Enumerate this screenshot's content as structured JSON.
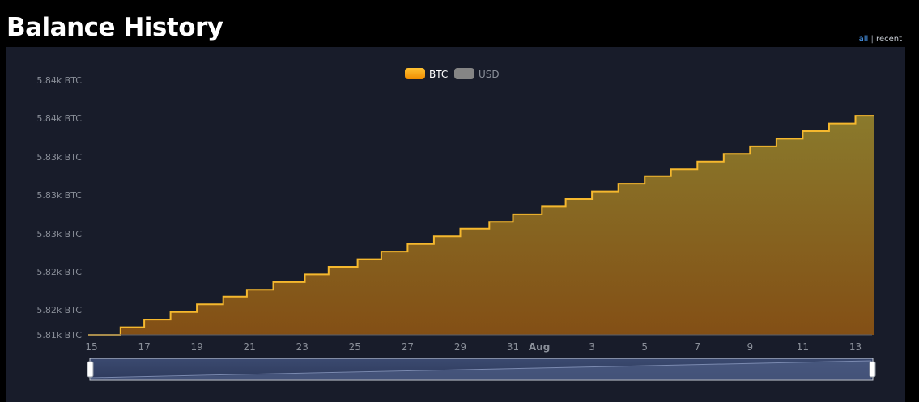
{
  "page": {
    "title": "Balance History",
    "range_links": {
      "all": "all",
      "separator": "|",
      "recent": "recent"
    }
  },
  "chart_data": {
    "type": "area",
    "step": true,
    "legend": [
      {
        "name": "BTC",
        "color": "#f5a623",
        "active": true
      },
      {
        "name": "USD",
        "color": "#888888",
        "active": false
      }
    ],
    "legend_placement": "top-center",
    "y_tick_labels": [
      "5.84k BTC",
      "5.84k BTC",
      "5.83k BTC",
      "5.83k BTC",
      "5.83k BTC",
      "5.82k BTC",
      "5.82k BTC",
      "5.81k BTC"
    ],
    "ylim": [
      5813,
      5843
    ],
    "x_tick_labels": [
      {
        "label": "15",
        "day": 0,
        "bold": false
      },
      {
        "label": "17",
        "day": 2,
        "bold": false
      },
      {
        "label": "19",
        "day": 4,
        "bold": false
      },
      {
        "label": "21",
        "day": 6,
        "bold": false
      },
      {
        "label": "23",
        "day": 8,
        "bold": false
      },
      {
        "label": "25",
        "day": 10,
        "bold": false
      },
      {
        "label": "27",
        "day": 12,
        "bold": false
      },
      {
        "label": "29",
        "day": 14,
        "bold": false
      },
      {
        "label": "31",
        "day": 16,
        "bold": false
      },
      {
        "label": "Aug",
        "day": 17,
        "bold": true
      },
      {
        "label": "3",
        "day": 19,
        "bold": false
      },
      {
        "label": "5",
        "day": 21,
        "bold": false
      },
      {
        "label": "7",
        "day": 23,
        "bold": false
      },
      {
        "label": "9",
        "day": 25,
        "bold": false
      },
      {
        "label": "11",
        "day": 27,
        "bold": false
      },
      {
        "label": "13",
        "day": 29,
        "bold": false
      }
    ],
    "series": [
      {
        "name": "BTC",
        "x": [
          "Jul 15",
          "Jul 16",
          "Jul 17",
          "Jul 18",
          "Jul 19",
          "Jul 20",
          "Jul 21",
          "Jul 22",
          "Jul 23",
          "Jul 24",
          "Jul 25",
          "Jul 26",
          "Jul 27",
          "Jul 28",
          "Jul 29",
          "Jul 30",
          "Jul 31",
          "Aug 1",
          "Aug 2",
          "Aug 3",
          "Aug 4",
          "Aug 5",
          "Aug 6",
          "Aug 7",
          "Aug 8",
          "Aug 9",
          "Aug 10",
          "Aug 11",
          "Aug 12",
          "Aug 13"
        ],
        "x_day": [
          0,
          1.1,
          2,
          3,
          4,
          5,
          5.9,
          6.9,
          8.1,
          9,
          10.1,
          11,
          12,
          13,
          14,
          15.1,
          16,
          17.1,
          18,
          19,
          20,
          21,
          22,
          23,
          24,
          25,
          26,
          27,
          28,
          29
        ],
        "values": [
          5813.0,
          5813.9,
          5814.8,
          5815.7,
          5816.6,
          5817.5,
          5818.3,
          5819.2,
          5820.1,
          5821.0,
          5821.9,
          5822.8,
          5823.7,
          5824.6,
          5825.5,
          5826.3,
          5827.2,
          5828.1,
          5829.0,
          5829.9,
          5830.8,
          5831.7,
          5832.5,
          5833.4,
          5834.3,
          5835.2,
          5836.1,
          5837.0,
          5837.9,
          5838.8
        ]
      }
    ],
    "x_end_day": 29.7,
    "grid": false
  }
}
